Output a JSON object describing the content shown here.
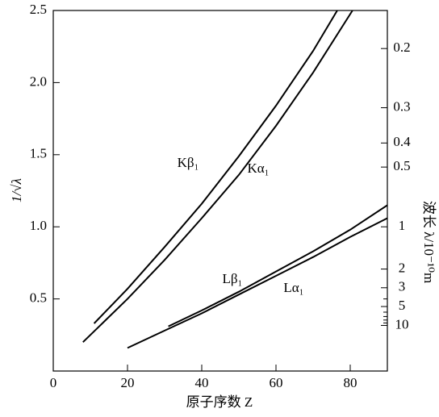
{
  "chart_data": {
    "type": "line",
    "xlabel": "原子序数 Z",
    "ylabel": "1/√λ",
    "y2label": "波长 λ/10⁻¹⁰m",
    "xlim": [
      0,
      90
    ],
    "xticks": [
      0,
      20,
      40,
      60,
      80
    ],
    "ylim": [
      0,
      2.5
    ],
    "yticks": [
      0.5,
      1.0,
      1.5,
      2.0,
      2.5
    ],
    "y2_scale": "inverse_sqrt",
    "y2ticks": [
      0.2,
      0.3,
      0.4,
      0.5,
      1,
      2,
      3,
      5,
      10
    ],
    "y2minor": [
      4,
      6,
      7,
      8,
      9
    ],
    "series": [
      {
        "name": "Kβ₁",
        "color": "#000000",
        "x": [
          11,
          20,
          30,
          40,
          50,
          60,
          70,
          76.5
        ],
        "values": [
          0.33,
          0.57,
          0.86,
          1.16,
          1.49,
          1.84,
          2.22,
          2.5
        ]
      },
      {
        "name": "Kα₁",
        "color": "#000000",
        "x": [
          8,
          20,
          30,
          40,
          50,
          60,
          70,
          80.6
        ],
        "values": [
          0.2,
          0.5,
          0.77,
          1.06,
          1.36,
          1.7,
          2.07,
          2.5
        ]
      },
      {
        "name": "Lβ₁",
        "color": "#000000",
        "x": [
          31,
          40,
          50,
          60,
          70,
          80,
          90
        ],
        "values": [
          0.31,
          0.42,
          0.55,
          0.69,
          0.83,
          0.98,
          1.15
        ]
      },
      {
        "name": "Lα₁",
        "color": "#000000",
        "x": [
          20,
          30,
          40,
          50,
          60,
          70,
          80,
          90
        ],
        "values": [
          0.16,
          0.28,
          0.4,
          0.53,
          0.66,
          0.79,
          0.93,
          1.06
        ]
      }
    ]
  }
}
